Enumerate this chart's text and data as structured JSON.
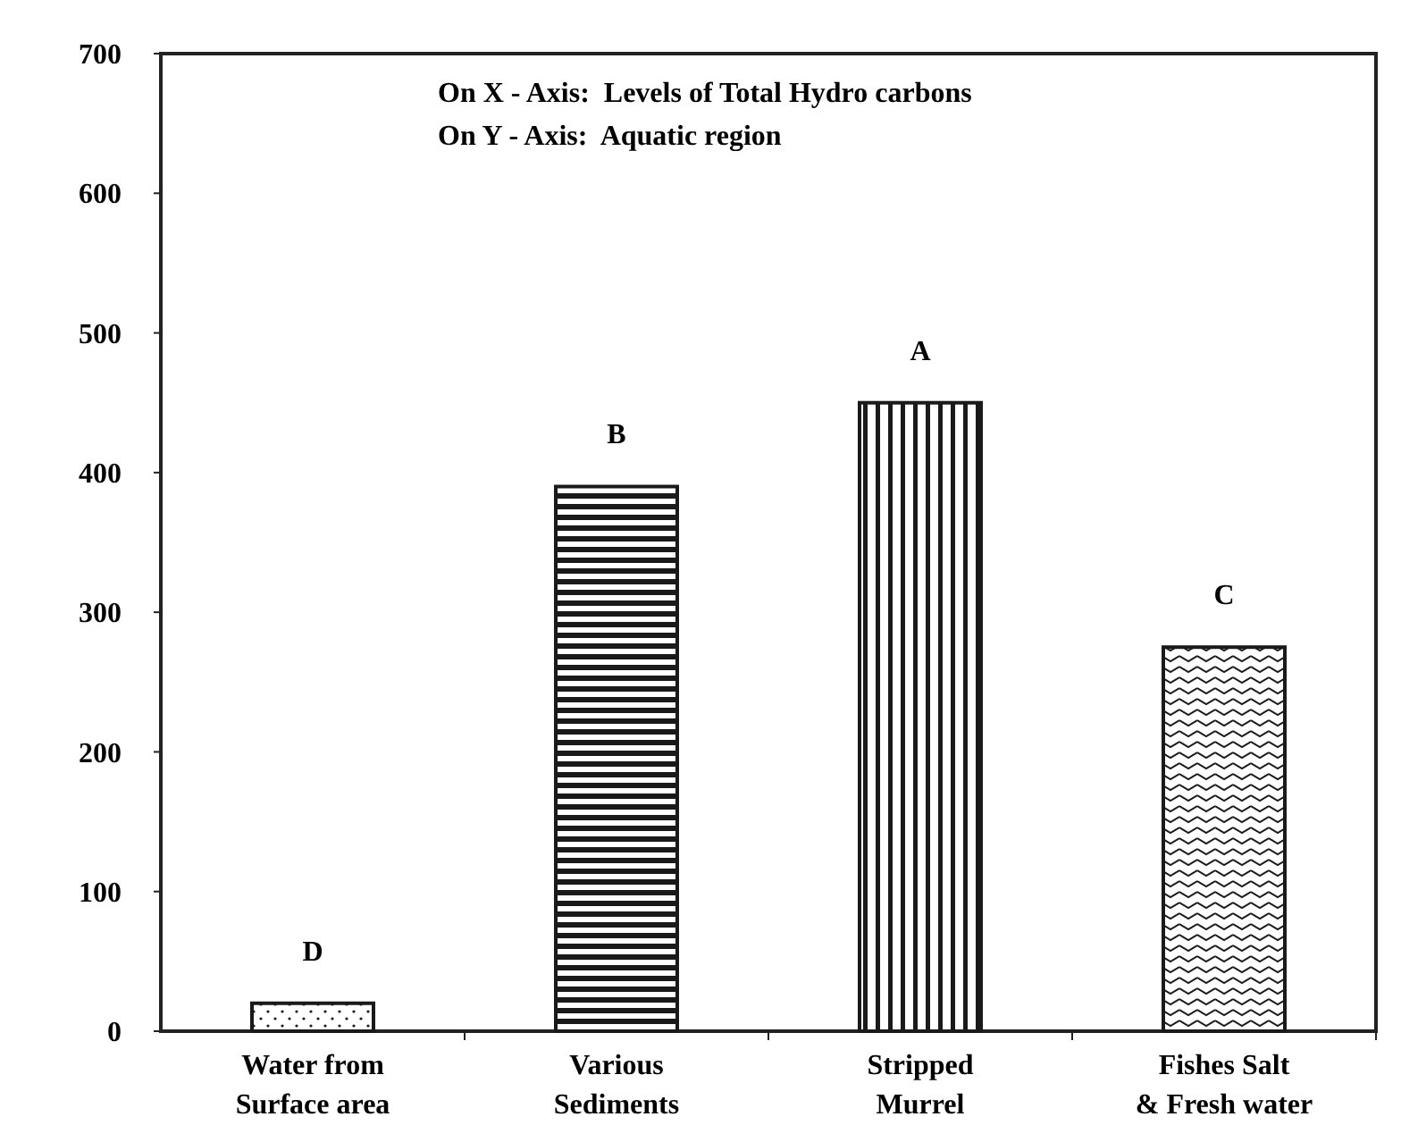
{
  "chart_data": {
    "type": "bar",
    "categories": [
      "Water from\nSurface area",
      "Various\nSediments",
      "Stripped\nMurrel",
      "Fishes Salt\n& Fresh water"
    ],
    "values": [
      20,
      390,
      450,
      275
    ],
    "color": "#1a1a1a",
    "ylim": [
      0,
      700
    ],
    "yticks": [
      0,
      100,
      200,
      300,
      400,
      500,
      600,
      700
    ],
    "grid": false,
    "annotations": [
      "On X - Axis:  Levels of Total Hydro carbons",
      "On Y - Axis:  Aquatic region",
      {
        "text": "D",
        "x": "Water from\nSurface area",
        "y": 20
      },
      {
        "text": "B",
        "x": "Various\nSediments",
        "y": 390
      },
      {
        "text": "A",
        "x": "Stripped\nMurrel",
        "y": 450
      },
      {
        "text": "C",
        "x": "Fishes Salt\n& Fresh water",
        "y": 275
      }
    ]
  }
}
